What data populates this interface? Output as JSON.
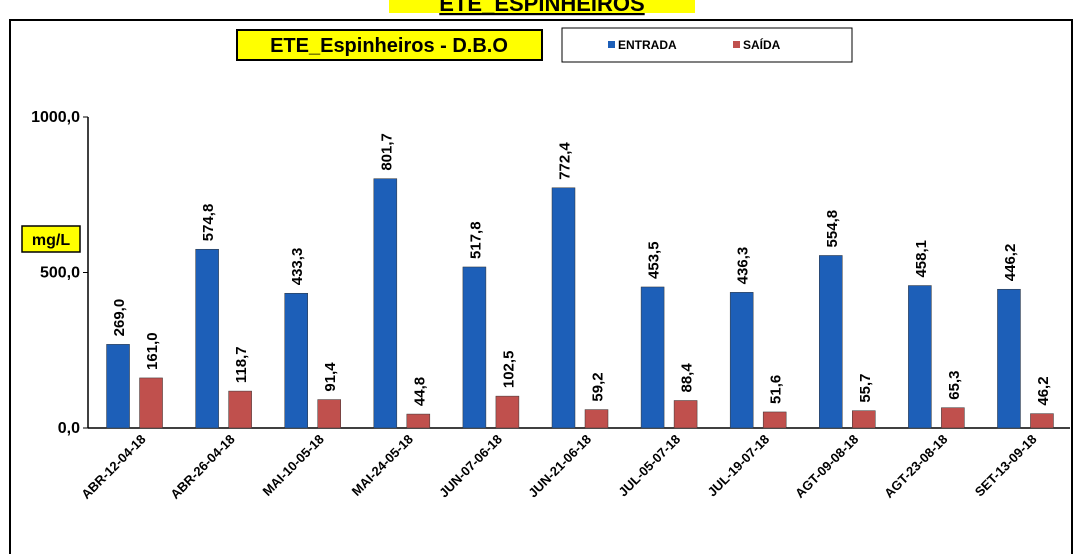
{
  "chart_data": {
    "type": "bar",
    "page_title": "ETE_ESPINHEIROS",
    "title": "ETE_Espinheiros - D.B.O",
    "ylabel": "mg/L",
    "categories": [
      "ABR-12-04-18",
      "ABR-26-04-18",
      "MAI-10-05-18",
      "MAI-24-05-18",
      "JUN-07-06-18",
      "JUN-21-06-18",
      "JUL-05-07-18",
      "JUL-19-07-18",
      "AGT-09-08-18",
      "AGT-23-08-18",
      "SET-13-09-18"
    ],
    "series": [
      {
        "name": "ENTRADA",
        "color": "#1d5fb8",
        "values": [
          269.0,
          574.8,
          433.3,
          801.7,
          517.8,
          772.4,
          453.5,
          436.3,
          554.8,
          458.1,
          446.2
        ],
        "value_labels": [
          "269,0",
          "574,8",
          "433,3",
          "801,7",
          "517,8",
          "772,4",
          "453,5",
          "436,3",
          "554,8",
          "458,1",
          "446,2"
        ]
      },
      {
        "name": "SAÍDA",
        "color": "#c0504d",
        "values": [
          161.0,
          118.7,
          91.4,
          44.8,
          102.5,
          59.2,
          88.4,
          51.6,
          55.7,
          65.3,
          46.2
        ],
        "value_labels": [
          "161,0",
          "118,7",
          "91,4",
          "44,8",
          "102,5",
          "59,2",
          "88,4",
          "51,6",
          "55,7",
          "65,3",
          "46,2"
        ]
      }
    ],
    "ylim": [
      0,
      1000
    ],
    "yticks": [
      {
        "value": 0,
        "label": "0,0"
      },
      {
        "value": 500,
        "label": "500,0"
      },
      {
        "value": 1000,
        "label": "1000,0"
      }
    ],
    "grid": false
  }
}
